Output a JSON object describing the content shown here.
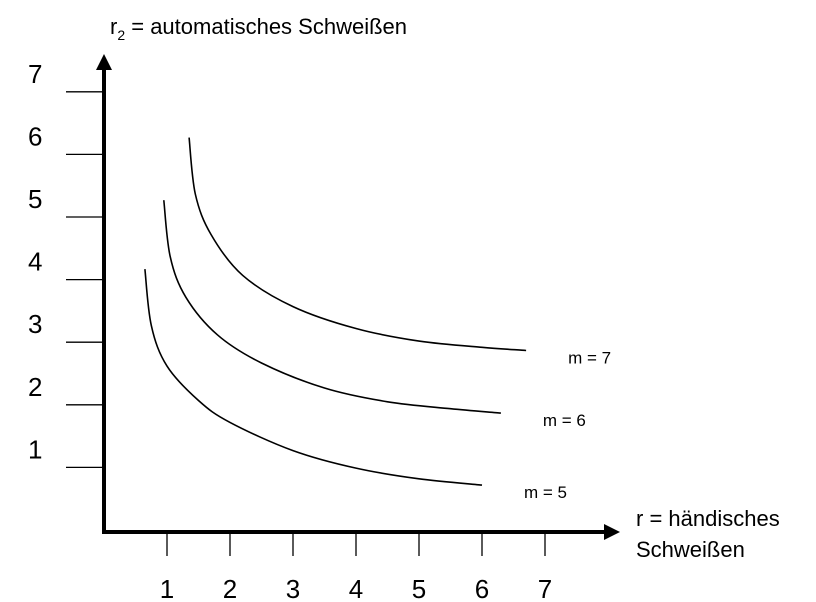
{
  "chart_data": {
    "type": "line",
    "title": "",
    "ylabel": {
      "base": "r",
      "subscript": "2",
      "rest": " = automatisches Schweißen"
    },
    "xlabel": [
      "r = händisches",
      "Schweißen"
    ],
    "xlim": [
      0,
      7
    ],
    "ylim": [
      0,
      7
    ],
    "x_ticks": [
      "1",
      "2",
      "3",
      "4",
      "5",
      "6",
      "7"
    ],
    "y_ticks": [
      "1",
      "2",
      "3",
      "4",
      "5",
      "6",
      "7"
    ],
    "grid": false,
    "legend": "none",
    "series": [
      {
        "name": "m = 5",
        "x": [
          0.65,
          0.75,
          1.0,
          1.5,
          2.0,
          3.0,
          4.0,
          5.0,
          6.0
        ],
        "y": [
          4.2,
          3.3,
          2.65,
          2.1,
          1.75,
          1.3,
          1.02,
          0.85,
          0.75
        ]
      },
      {
        "name": "m = 6",
        "x": [
          0.95,
          1.05,
          1.3,
          1.8,
          2.5,
          3.5,
          4.5,
          5.5,
          6.3
        ],
        "y": [
          5.3,
          4.4,
          3.75,
          3.15,
          2.7,
          2.3,
          2.08,
          1.97,
          1.9
        ]
      },
      {
        "name": "m = 7",
        "x": [
          1.35,
          1.45,
          1.7,
          2.2,
          3.0,
          4.0,
          5.0,
          6.0,
          6.7
        ],
        "y": [
          6.3,
          5.4,
          4.75,
          4.1,
          3.6,
          3.25,
          3.05,
          2.95,
          2.9
        ]
      }
    ]
  }
}
